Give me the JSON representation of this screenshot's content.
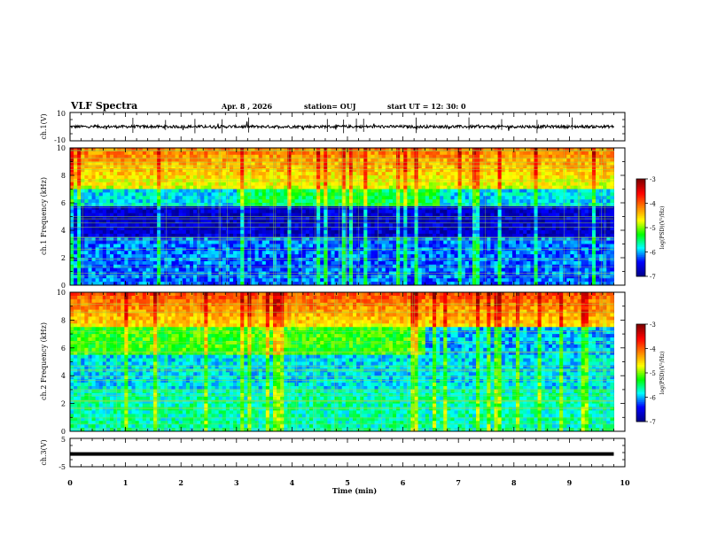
{
  "header": {
    "title": "VLF Spectra",
    "date": "Apr. 8  , 2026",
    "station": "station= OUJ",
    "start": "start  UT  =    12: 30: 0"
  },
  "colors": {
    "frame": "#000000",
    "spectral_grid": "#9bd84a",
    "colormap": [
      "#00008f",
      "#0000ff",
      "#00ffff",
      "#00ff00",
      "#ffff00",
      "#ff8000",
      "#ff0000",
      "#800000"
    ]
  },
  "chart_data": [
    {
      "type": "line",
      "name": "ch1-waveform",
      "ylabel": "ch.1(V)",
      "ylim": [
        -10,
        10
      ],
      "yticklabels": [
        "10",
        "-10"
      ],
      "baseline": 0,
      "noise_amplitude": 1
    },
    {
      "type": "heatmap",
      "name": "ch1-spectrogram",
      "ylabel": "ch.1 Frequency  (kHz)",
      "ylim": [
        0,
        10
      ],
      "yticks": [
        0,
        2,
        4,
        6,
        8,
        10
      ],
      "colorbar": {
        "label": "log(PSD)(V²/Hz)",
        "range": [
          -7,
          -3
        ],
        "ticks": [
          "-3",
          "-4",
          "-5",
          "-6",
          "-7"
        ]
      }
    },
    {
      "type": "heatmap",
      "name": "ch2-spectrogram",
      "ylabel": "ch.2 Frequency  (kHz)",
      "ylim": [
        0,
        10
      ],
      "yticks": [
        0,
        2,
        4,
        6,
        8,
        10
      ],
      "colorbar": {
        "label": "log(PSD)(V²/Hz)",
        "range": [
          -7,
          -3
        ],
        "ticks": [
          "-3",
          "-4",
          "-5",
          "-6",
          "-7"
        ]
      }
    },
    {
      "type": "line",
      "name": "ch3-waveform",
      "ylabel": "ch.3(V)",
      "ylim": [
        -5,
        5
      ],
      "yticklabels": [
        "5",
        "-5"
      ],
      "baseline": -0.5,
      "noise_amplitude": 0.15
    }
  ],
  "xaxis": {
    "label": "Time  (min)",
    "range": [
      0,
      10
    ],
    "ticks": [
      "0",
      "1",
      "2",
      "3",
      "4",
      "5",
      "6",
      "7",
      "8",
      "9",
      "10"
    ],
    "data_end": 9.8
  }
}
